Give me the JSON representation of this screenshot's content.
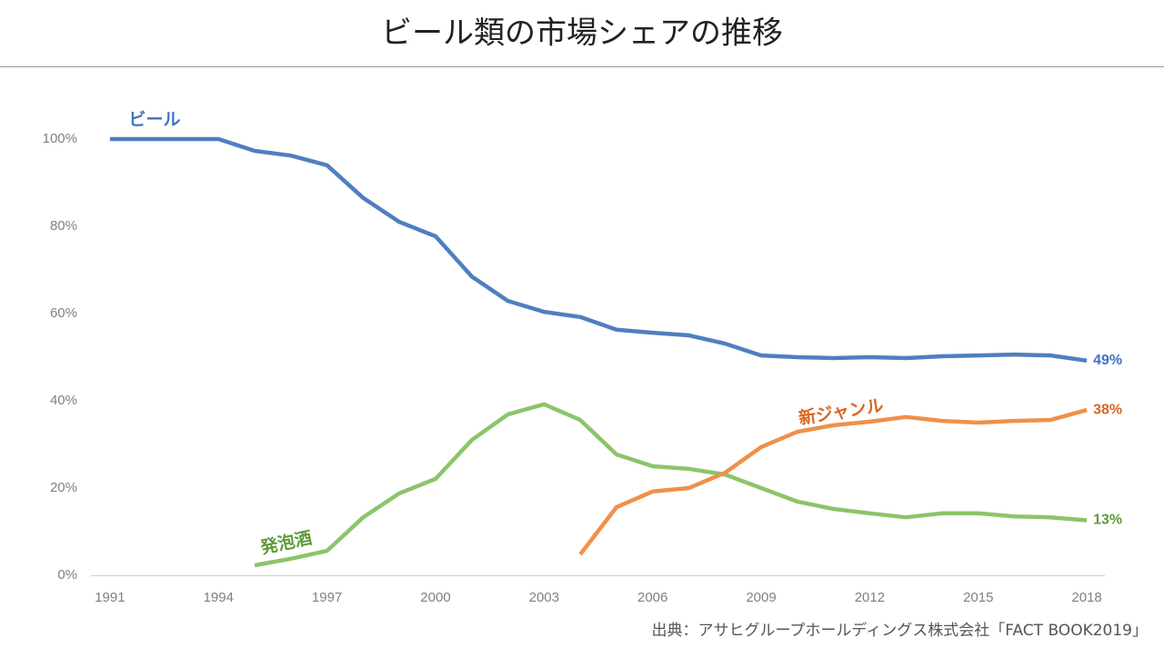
{
  "chart_data": {
    "type": "line",
    "title": "ビール類の市場シェアの推移",
    "source": "出典：アサヒグループホールディングス株式会社「FACT BOOK2019」",
    "x": [
      1991,
      1992,
      1993,
      1994,
      1995,
      1996,
      1997,
      1998,
      1999,
      2000,
      2001,
      2002,
      2003,
      2004,
      2005,
      2006,
      2007,
      2008,
      2009,
      2010,
      2011,
      2012,
      2013,
      2014,
      2015,
      2016,
      2017,
      2018
    ],
    "xlim": [
      1990.5,
      2018.5
    ],
    "xticks": [
      1991,
      1994,
      1997,
      2000,
      2003,
      2006,
      2009,
      2012,
      2015,
      2018
    ],
    "ylim": [
      0,
      110
    ],
    "yticks": [
      {
        "value": 0,
        "label": "0%"
      },
      {
        "value": 20,
        "label": "20%"
      },
      {
        "value": 40,
        "label": "40%"
      },
      {
        "value": 60,
        "label": "60%"
      },
      {
        "value": 80,
        "label": "80%"
      },
      {
        "value": 100,
        "label": "100%"
      }
    ],
    "grid": false,
    "series": [
      {
        "name": "ビール",
        "color": "#4f7fc0",
        "label_color": "#4472c4",
        "values": [
          100,
          100,
          100,
          100,
          97.3,
          96.2,
          94,
          86.5,
          81,
          77.7,
          68.5,
          62.9,
          60.4,
          59.2,
          56.3,
          55.6,
          55,
          53.1,
          50.4,
          50,
          49.8,
          50,
          49.8,
          50.2,
          50.4,
          50.6,
          50.4,
          49.2
        ],
        "value_labels": [
          null,
          null,
          null,
          null,
          null,
          null,
          null,
          null,
          null,
          null,
          null,
          null,
          null,
          null,
          null,
          null,
          null,
          null,
          null,
          null,
          null,
          null,
          null,
          null,
          null,
          null,
          null,
          "49%"
        ]
      },
      {
        "name": "発泡酒",
        "color": "#8cc46a",
        "label_color": "#5f9a3a",
        "values": [
          null,
          null,
          null,
          null,
          2.3,
          3.8,
          5.6,
          13.3,
          18.8,
          22.1,
          31,
          36.9,
          39.2,
          35.6,
          27.7,
          25,
          24.4,
          23.1,
          20,
          16.9,
          15.2,
          14.2,
          13.3,
          14.2,
          14.2,
          13.5,
          13.3,
          12.6
        ],
        "value_labels": [
          null,
          null,
          null,
          null,
          null,
          null,
          null,
          null,
          null,
          null,
          null,
          null,
          null,
          null,
          null,
          null,
          null,
          null,
          null,
          null,
          null,
          null,
          null,
          null,
          null,
          null,
          null,
          "13%"
        ]
      },
      {
        "name": "新ジャンル",
        "color": "#f0904a",
        "label_color": "#d9661f",
        "values": [
          null,
          null,
          null,
          null,
          null,
          null,
          null,
          null,
          null,
          null,
          null,
          null,
          null,
          4.8,
          15.6,
          19.2,
          20,
          23.5,
          29.4,
          32.9,
          34.4,
          35.2,
          36.3,
          35.4,
          35,
          35.4,
          35.6,
          37.9
        ],
        "value_labels": [
          null,
          null,
          null,
          null,
          null,
          null,
          null,
          null,
          null,
          null,
          null,
          null,
          null,
          null,
          null,
          null,
          null,
          null,
          null,
          null,
          null,
          null,
          null,
          null,
          null,
          null,
          null,
          "38%"
        ]
      }
    ]
  }
}
